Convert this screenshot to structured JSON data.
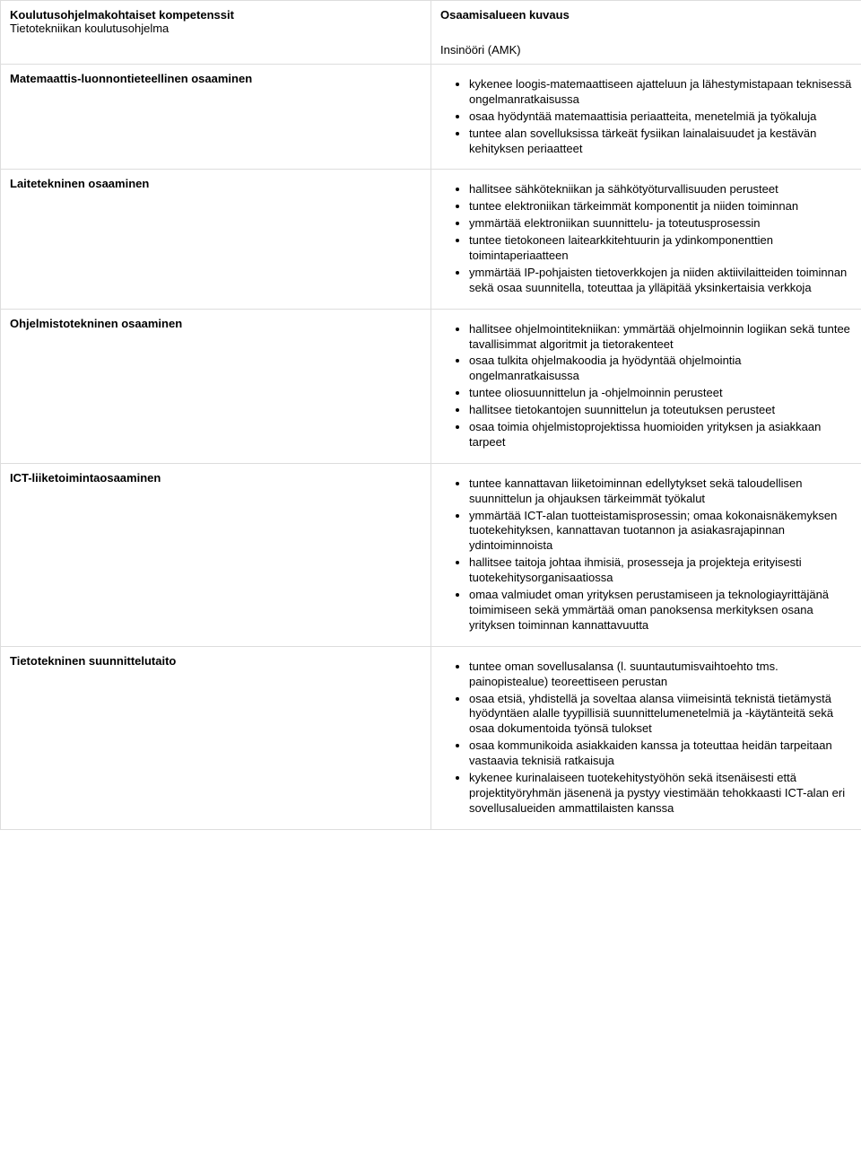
{
  "header": {
    "left_title": "Koulutusohjelmakohtaiset kompetenssit",
    "left_sub": "Tietotekniikan koulutusohjelma",
    "right_title": "Osaamisalueen kuvaus",
    "right_sub": "Insinööri (AMK)"
  },
  "rows": [
    {
      "title": "Matemaattis-luonnontieteellinen osaaminen",
      "items": [
        "kykenee loogis-matemaattiseen ajatteluun ja lähestymistapaan teknisessä ongelmanratkaisussa",
        "osaa hyödyntää matemaattisia periaatteita, menetelmiä ja työkaluja",
        "tuntee alan sovelluksissa tärkeät fysiikan lainalaisuudet ja kestävän kehityksen periaatteet"
      ]
    },
    {
      "title": "Laitetekninen osaaminen",
      "items": [
        "hallitsee sähkötekniikan ja sähkötyöturvallisuuden perusteet",
        "tuntee elektroniikan tärkeimmät komponentit ja niiden toiminnan",
        "ymmärtää elektroniikan suunnittelu- ja toteutusprosessin",
        "tuntee tietokoneen laitearkkitehtuurin ja ydinkomponenttien toimintaperiaatteen",
        "ymmärtää IP-pohjaisten tietoverkkojen ja niiden aktiivilaitteiden toiminnan sekä osaa suunnitella, toteuttaa ja ylläpitää yksinkertaisia verkkoja"
      ]
    },
    {
      "title": "Ohjelmistotekninen osaaminen",
      "items": [
        "hallitsee ohjelmointitekniikan: ymmärtää ohjelmoinnin logiikan sekä tuntee tavallisimmat algoritmit ja tietorakenteet",
        "osaa tulkita ohjelmakoodia ja hyödyntää ohjelmointia ongelmanratkaisussa",
        "tuntee oliosuunnittelun ja -ohjelmoinnin perusteet",
        "hallitsee tietokantojen suunnittelun ja toteutuksen perusteet",
        "osaa toimia ohjelmistoprojektissa huomioiden yrityksen ja asiakkaan tarpeet"
      ]
    },
    {
      "title": "ICT-liiketoimintaosaaminen",
      "items": [
        "tuntee kannattavan liiketoiminnan edellytykset sekä taloudellisen suunnittelun ja ohjauksen tärkeimmät työkalut",
        "ymmärtää ICT-alan tuotteistamisprosessin; omaa kokonaisnäkemyksen tuotekehityksen, kannattavan tuotannon ja asiakasrajapinnan ydintoiminnoista",
        "hallitsee taitoja johtaa ihmisiä, prosesseja ja projekteja erityisesti tuotekehitysorganisaatiossa",
        "omaa valmiudet oman yrityksen perustamiseen ja teknologiayrittäjänä toimimiseen sekä ymmärtää oman panoksensa merkityksen osana yrityksen toiminnan kannattavuutta"
      ]
    },
    {
      "title": "Tietotekninen suunnittelutaito",
      "items": [
        "tuntee oman sovellusalansa (l. suuntautumisvaihtoehto tms. painopistealue) teoreettiseen perustan",
        "osaa etsiä, yhdistellä ja soveltaa alansa viimeisintä teknistä tietämystä hyödyntäen alalle tyypillisiä suunnittelumenetelmiä ja -käytänteitä sekä osaa dokumentoida työnsä tulokset",
        "osaa kommunikoida asiakkaiden kanssa ja toteuttaa heidän tarpeitaan vastaavia teknisiä ratkaisuja",
        "kykenee kurinalaiseen tuotekehitystyöhön sekä itsenäisesti että projektityöryhmän jäsenenä ja pystyy viestimään tehokkaasti ICT-alan eri sovellusalueiden ammattilaisten kanssa"
      ]
    }
  ]
}
